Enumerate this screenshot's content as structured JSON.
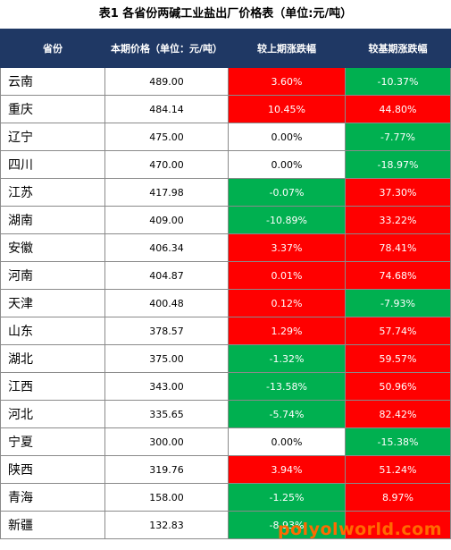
{
  "title": "表1   各省份两碱工业盐出厂价格表（单位:元/吨）",
  "headers": {
    "province": "省份",
    "price": "本期价格（单位：元/吨）",
    "mom": "较上期涨跌幅",
    "yoy": "较基期涨跌幅"
  },
  "colors": {
    "up": "#ff0000",
    "down": "#00b050",
    "header": "#1f3864"
  },
  "rows": [
    {
      "province": "云南",
      "price": "489.00",
      "mom": "3.60%",
      "yoy": "-10.37%"
    },
    {
      "province": "重庆",
      "price": "484.14",
      "mom": "10.45%",
      "yoy": "44.80%"
    },
    {
      "province": "辽宁",
      "price": "475.00",
      "mom": "0.00%",
      "yoy": "-7.77%"
    },
    {
      "province": "四川",
      "price": "470.00",
      "mom": "0.00%",
      "yoy": "-18.97%"
    },
    {
      "province": "江苏",
      "price": "417.98",
      "mom": "-0.07%",
      "yoy": "37.30%"
    },
    {
      "province": "湖南",
      "price": "409.00",
      "mom": "-10.89%",
      "yoy": "33.22%"
    },
    {
      "province": "安徽",
      "price": "406.34",
      "mom": "3.37%",
      "yoy": "78.41%"
    },
    {
      "province": "河南",
      "price": "404.87",
      "mom": "0.01%",
      "yoy": "74.68%"
    },
    {
      "province": "天津",
      "price": "400.48",
      "mom": "0.12%",
      "yoy": "-7.93%"
    },
    {
      "province": "山东",
      "price": "378.57",
      "mom": "1.29%",
      "yoy": "57.74%"
    },
    {
      "province": "湖北",
      "price": "375.00",
      "mom": "-1.32%",
      "yoy": "59.57%"
    },
    {
      "province": "江西",
      "price": "343.00",
      "mom": "-13.58%",
      "yoy": "50.96%"
    },
    {
      "province": "河北",
      "price": "335.65",
      "mom": "-5.74%",
      "yoy": "82.42%"
    },
    {
      "province": "宁夏",
      "price": "300.00",
      "mom": "0.00%",
      "yoy": "-15.38%"
    },
    {
      "province": "陕西",
      "price": "319.76",
      "mom": "3.94%",
      "yoy": "51.24%"
    },
    {
      "province": "青海",
      "price": "158.00",
      "mom": "-1.25%",
      "yoy": "8.97%"
    },
    {
      "province": "新疆",
      "price": "132.83",
      "mom": "-8.93%",
      "yoy": ""
    }
  ],
  "watermark": "polyolworld.com"
}
